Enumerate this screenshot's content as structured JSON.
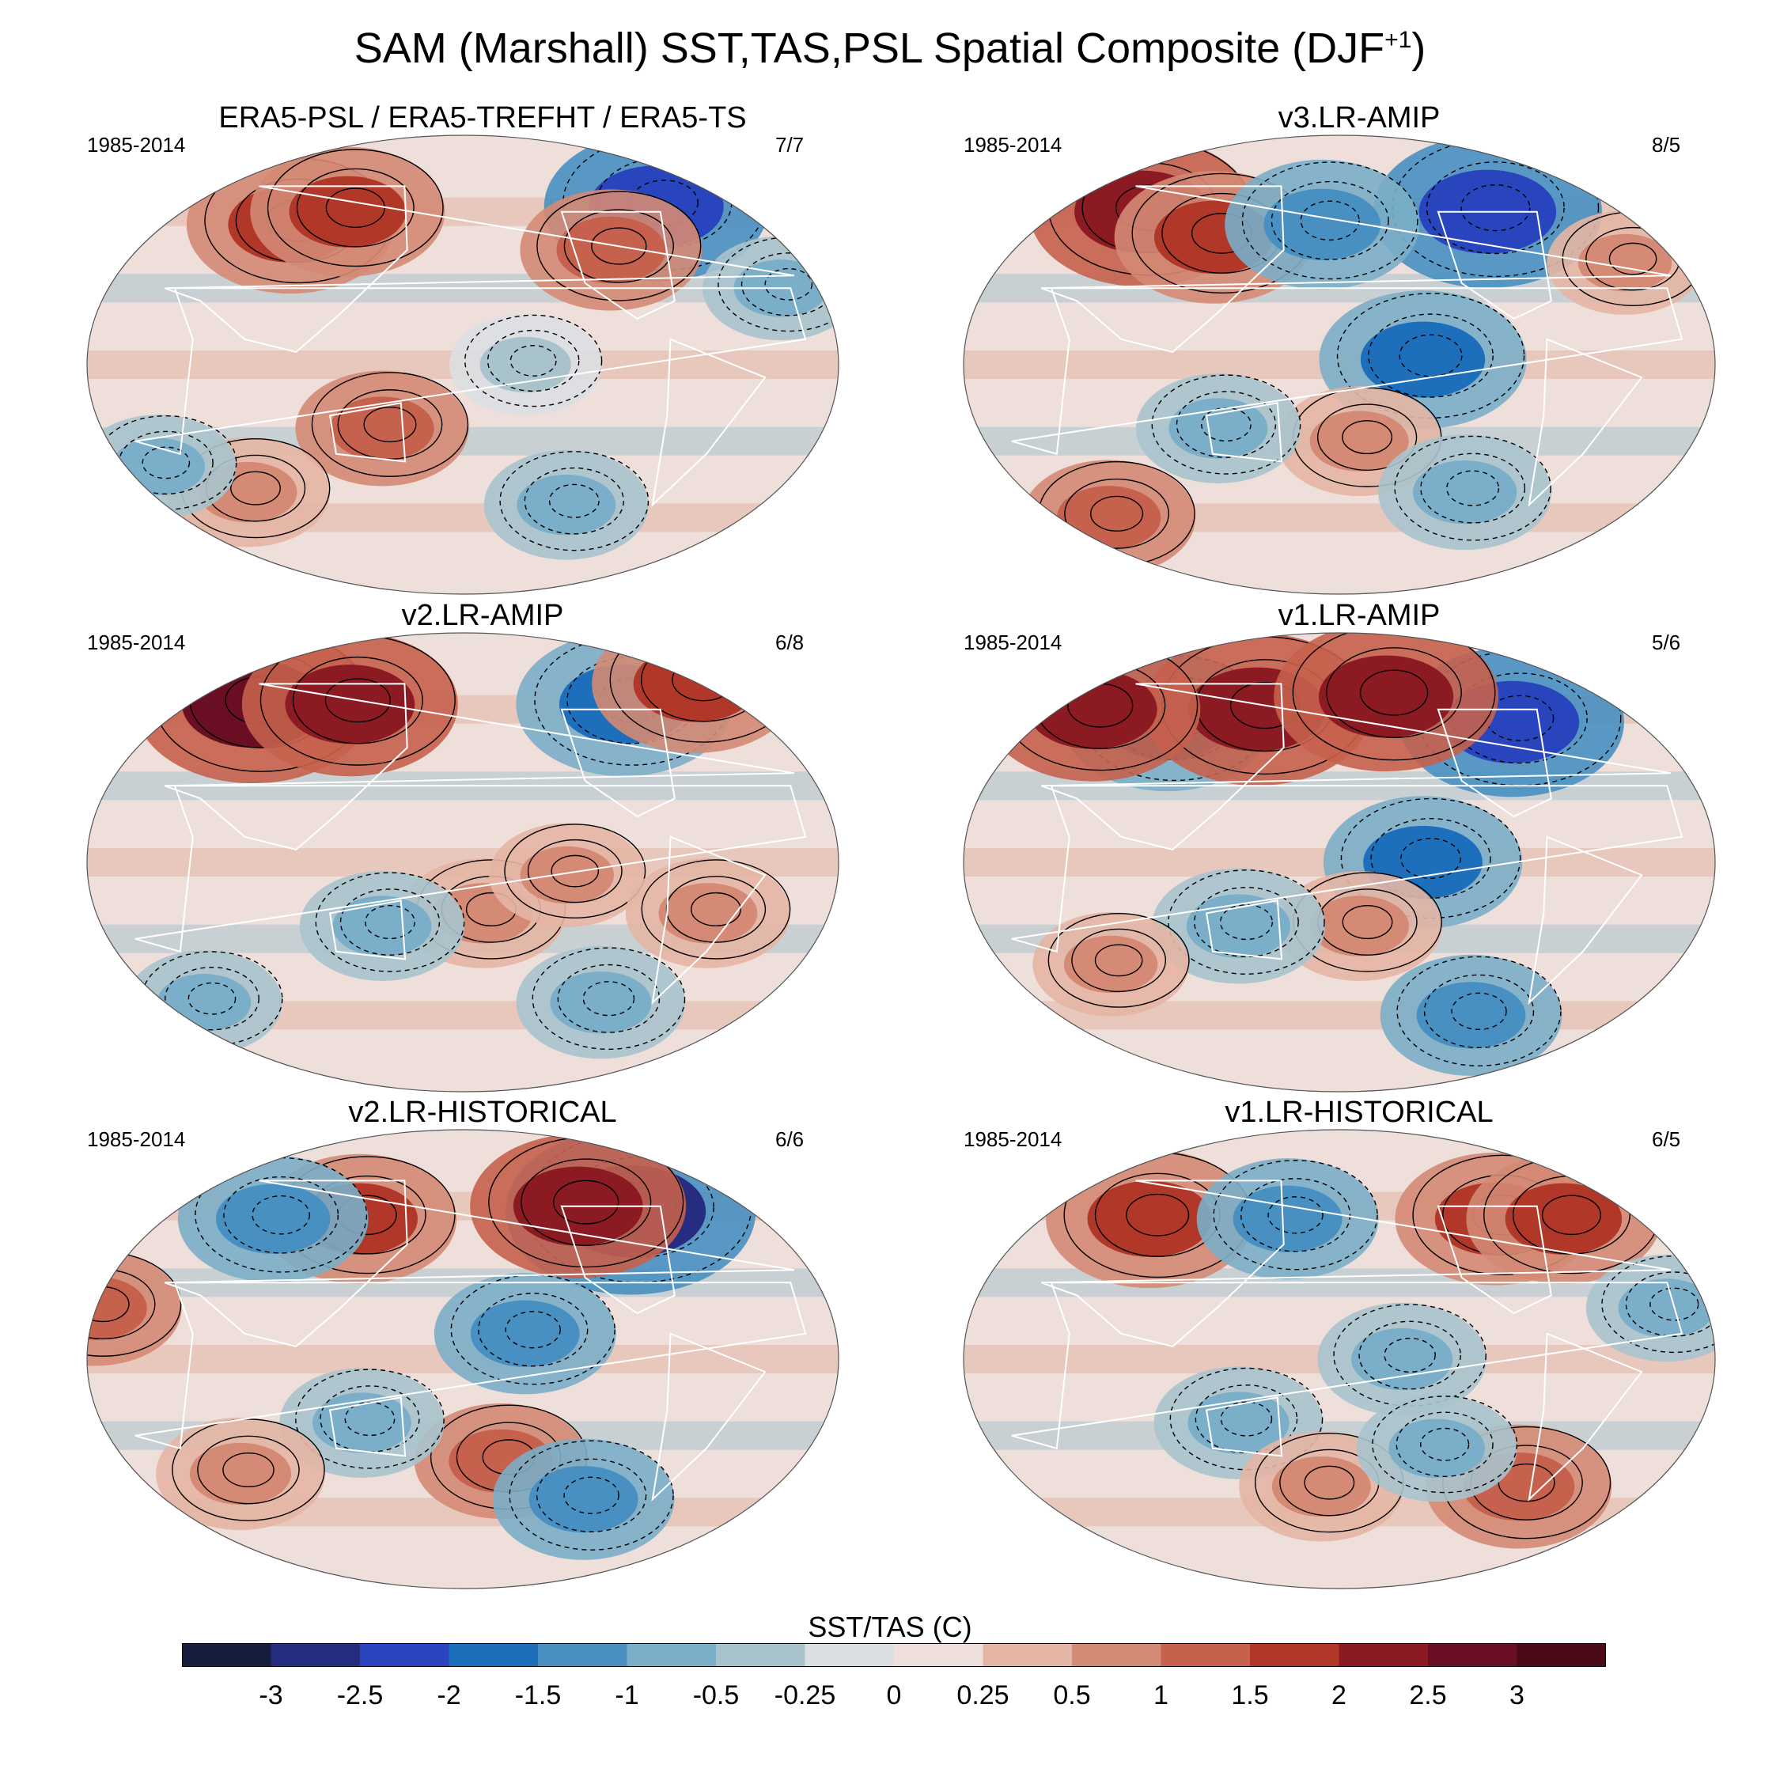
{
  "title": {
    "main": "SAM (Marshall) SST,TAS,PSL Spatial Composite (DJF",
    "superscript": "+1",
    "close": ")"
  },
  "panels": [
    {
      "title": "ERA5-PSL / ERA5-TREFHT / ERA5-TS",
      "period": "1985-2014",
      "count": "7/7",
      "features": [
        {
          "lon": 80,
          "lat": 55,
          "value": 1.8
        },
        {
          "lon": 110,
          "lat": 60,
          "value": 1.5
        },
        {
          "lon": -60,
          "lat": 62,
          "value": -2.2
        },
        {
          "lon": -20,
          "lat": 30,
          "value": -0.6
        },
        {
          "lon": 140,
          "lat": -25,
          "value": 1.0
        },
        {
          "lon": -150,
          "lat": 0,
          "value": -0.5
        },
        {
          "lon": -120,
          "lat": -55,
          "value": -0.8
        },
        {
          "lon": 60,
          "lat": -50,
          "value": 0.8
        },
        {
          "lon": -100,
          "lat": 45,
          "value": 1.2
        },
        {
          "lon": 20,
          "lat": -40,
          "value": -0.6
        }
      ]
    },
    {
      "title": "v3.LR-AMIP",
      "period": "1985-2014",
      "count": "8/5",
      "features": [
        {
          "lon": 60,
          "lat": 60,
          "value": 2.2
        },
        {
          "lon": 110,
          "lat": 50,
          "value": 1.6
        },
        {
          "lon": -90,
          "lat": 60,
          "value": -2.3
        },
        {
          "lon": 170,
          "lat": 55,
          "value": -1.5
        },
        {
          "lon": -140,
          "lat": 2,
          "value": -1.8
        },
        {
          "lon": -170,
          "lat": -30,
          "value": 0.8
        },
        {
          "lon": -110,
          "lat": -50,
          "value": -1.0
        },
        {
          "lon": -30,
          "lat": 40,
          "value": 0.6
        },
        {
          "lon": 120,
          "lat": -25,
          "value": -0.8
        },
        {
          "lon": 40,
          "lat": -60,
          "value": 1.0
        }
      ]
    },
    {
      "title": "v2.LR-AMIP",
      "period": "1985-2014",
      "count": "6/8",
      "features": [
        {
          "lon": 50,
          "lat": 62,
          "value": 2.5
        },
        {
          "lon": 110,
          "lat": 62,
          "value": 2.0
        },
        {
          "lon": -80,
          "lat": 62,
          "value": -2.0
        },
        {
          "lon": -20,
          "lat": 70,
          "value": 1.8
        },
        {
          "lon": -170,
          "lat": -20,
          "value": 0.8
        },
        {
          "lon": -130,
          "lat": -5,
          "value": 0.6
        },
        {
          "lon": 140,
          "lat": -25,
          "value": -0.8
        },
        {
          "lon": -100,
          "lat": -55,
          "value": -0.9
        },
        {
          "lon": -60,
          "lat": -20,
          "value": 0.8
        },
        {
          "lon": 30,
          "lat": -55,
          "value": -0.6
        }
      ]
    },
    {
      "title": "v1.LR-AMIP",
      "period": "1985-2014",
      "count": "5/6",
      "features": [
        {
          "lon": 80,
          "lat": 55,
          "value": -1.8
        },
        {
          "lon": 130,
          "lat": 60,
          "value": 2.3
        },
        {
          "lon": -80,
          "lat": 55,
          "value": -2.2
        },
        {
          "lon": -150,
          "lat": 65,
          "value": 2.2
        },
        {
          "lon": -140,
          "lat": 0,
          "value": -1.6
        },
        {
          "lon": 30,
          "lat": 60,
          "value": 2.0
        },
        {
          "lon": -170,
          "lat": -25,
          "value": 0.8
        },
        {
          "lon": 130,
          "lat": -25,
          "value": -1.0
        },
        {
          "lon": -100,
          "lat": -60,
          "value": -1.2
        },
        {
          "lon": 60,
          "lat": -40,
          "value": 0.6
        }
      ]
    },
    {
      "title": "v2.LR-HISTORICAL",
      "period": "1985-2014",
      "count": "6/6",
      "features": [
        {
          "lon": 120,
          "lat": 55,
          "value": 1.5
        },
        {
          "lon": -80,
          "lat": 58,
          "value": -2.8
        },
        {
          "lon": -110,
          "lat": 60,
          "value": 2.0
        },
        {
          "lon": 70,
          "lat": 55,
          "value": -1.4
        },
        {
          "lon": -150,
          "lat": 10,
          "value": -1.2
        },
        {
          "lon": -160,
          "lat": -40,
          "value": 1.0
        },
        {
          "lon": -110,
          "lat": -55,
          "value": -1.2
        },
        {
          "lon": 0,
          "lat": 20,
          "value": 1.0
        },
        {
          "lon": 130,
          "lat": -25,
          "value": -0.8
        },
        {
          "lon": 60,
          "lat": -45,
          "value": 0.9
        }
      ]
    },
    {
      "title": "v1.LR-HISTORICAL",
      "period": "1985-2014",
      "count": "6/5",
      "features": [
        {
          "lon": 70,
          "lat": 55,
          "value": 1.8
        },
        {
          "lon": -90,
          "lat": 55,
          "value": 1.6
        },
        {
          "lon": 150,
          "lat": 55,
          "value": -1.2
        },
        {
          "lon": -50,
          "lat": 55,
          "value": 1.5
        },
        {
          "lon": -150,
          "lat": 0,
          "value": -0.9
        },
        {
          "lon": -80,
          "lat": -50,
          "value": 1.3
        },
        {
          "lon": -20,
          "lat": 20,
          "value": -0.7
        },
        {
          "lon": 130,
          "lat": -25,
          "value": -0.9
        },
        {
          "lon": 170,
          "lat": -50,
          "value": 0.8
        },
        {
          "lon": -130,
          "lat": -35,
          "value": -0.7
        }
      ]
    }
  ],
  "colorbar": {
    "label": "SST/TAS (C)",
    "levels": [
      "-3",
      "-2.5",
      "-2",
      "-1.5",
      "-1",
      "-0.5",
      "-0.25",
      "0",
      "0.25",
      "0.5",
      "1",
      "1.5",
      "2",
      "2.5",
      "3"
    ],
    "level_values": [
      -3,
      -2.5,
      -2,
      -1.5,
      -1,
      -0.5,
      -0.25,
      0,
      0.25,
      0.5,
      1,
      1.5,
      2,
      2.5,
      3
    ],
    "colors": [
      "#171d3f",
      "#262d81",
      "#2945be",
      "#1e6fbb",
      "#4890c1",
      "#7baec8",
      "#a9c3cd",
      "#dbdfe2",
      "#eedfdb",
      "#e4b5a4",
      "#d48a74",
      "#c5614c",
      "#b13728",
      "#8c1a22",
      "#6a0f23",
      "#4a0a16"
    ]
  }
}
